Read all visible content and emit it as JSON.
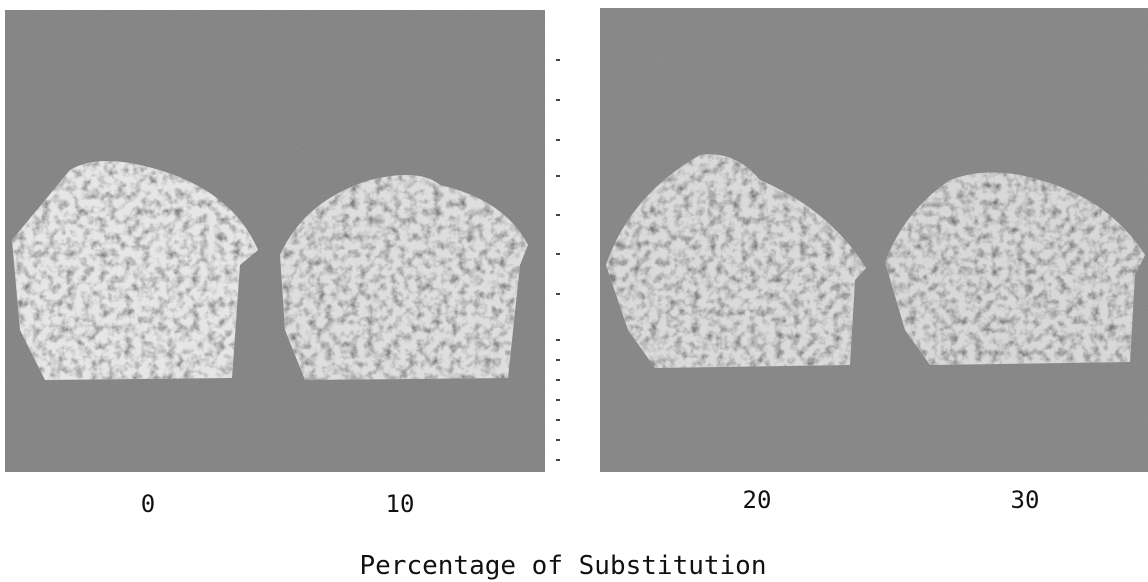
{
  "panels": {
    "labels": [
      "0",
      "10",
      "20",
      "30"
    ]
  },
  "caption": "Percentage of Substitution"
}
